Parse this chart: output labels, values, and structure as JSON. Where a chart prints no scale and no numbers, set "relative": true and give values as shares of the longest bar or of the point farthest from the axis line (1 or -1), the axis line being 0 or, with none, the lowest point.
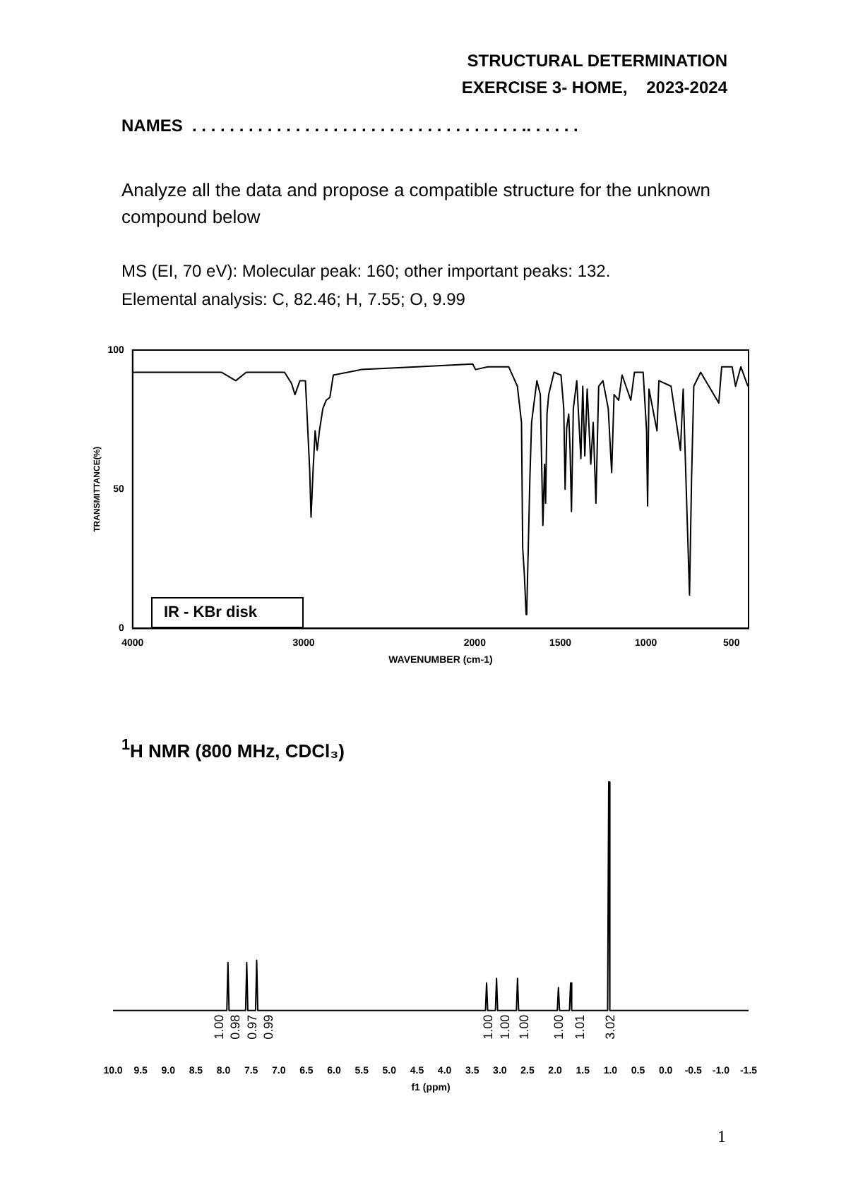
{
  "chart_data": [
    {
      "type": "line",
      "title": "STRUCTURAL DETERMINATION",
      "subtitle": "EXERCISE 3- HOME,    2023-2024",
      "annotations": [
        "NAMES  . . . . . . . . . . . . . . . . . . . . . . . . . . . . . . . . . . . .. . . . . .",
        "Analyze all the data and propose a compatible structure for the unknown compound below",
        "MS (EI, 70 eV): Molecular peak: 160; other important peaks: 132.",
        "Elemental analysis: C, 82.46; H, 7.55; O, 9.99",
        "IR  -  KBr disk"
      ],
      "xlabel": "WAVENUMBER (cm-1)",
      "ylabel": "TRANSMITTANCE(%)",
      "x": [
        4000,
        3479,
        3397,
        3336,
        3112,
        3071,
        3051,
        3022,
        2990,
        2982,
        2965,
        2957,
        2945,
        2933,
        2921,
        2908,
        2888,
        2868,
        2847,
        2827,
        2664,
        2338,
        2012,
        1996,
        1924,
        1802,
        1751,
        1727,
        1720,
        1710,
        1700,
        1696,
        1687,
        1678,
        1668,
        1658,
        1637,
        1617,
        1602,
        1592,
        1586,
        1578,
        1568,
        1537,
        1496,
        1480,
        1472,
        1463,
        1451,
        1443,
        1435,
        1424,
        1404,
        1380,
        1369,
        1357,
        1343,
        1322,
        1308,
        1292,
        1276,
        1251,
        1220,
        1200,
        1186,
        1159,
        1139,
        1088,
        1067,
        1016,
        996,
        990,
        982,
        935,
        924,
        853,
        798,
        782,
        745,
        733,
        720,
        680,
        574,
        557,
        496,
        476,
        445,
        404
      ],
      "series": [
        {
          "color": "#000000",
          "values": [
            92,
            92,
            89,
            92,
            92,
            88,
            84,
            89,
            89,
            79,
            57,
            40,
            57,
            71,
            64,
            71,
            79,
            82,
            83,
            91,
            93,
            94,
            95,
            93,
            94,
            94,
            87,
            74,
            29,
            19,
            5,
            7,
            30,
            54,
            74,
            79,
            89,
            84,
            37,
            59,
            45,
            77,
            84,
            92,
            91,
            79,
            50,
            72,
            77,
            64,
            42,
            79,
            89,
            61,
            87,
            62,
            86,
            59,
            74,
            45,
            87,
            89,
            79,
            56,
            84,
            82,
            91,
            82,
            92,
            92,
            71,
            44,
            86,
            71,
            89,
            87,
            64,
            86,
            12,
            54,
            87,
            92,
            81,
            94,
            94,
            87,
            94,
            87
          ]
        }
      ],
      "xlim": [
        4000,
        400
      ],
      "xticks": [
        4000,
        3000,
        2000,
        1500,
        1000,
        500
      ],
      "ylim": [
        0,
        100
      ],
      "yticks": [
        0,
        50,
        100
      ],
      "marker": "none"
    },
    {
      "type": "line",
      "title": "$^{1}$H NMR (800 MHz, CDCl₃)",
      "xlabel": "f1 (ppm)",
      "relative": true,
      "x": [
        10,
        7.94,
        7.92,
        7.9,
        7.6,
        7.58,
        7.56,
        7.42,
        7.4,
        7.38,
        3.26,
        3.24,
        3.22,
        3.08,
        3.06,
        3.04,
        2.7,
        2.68,
        2.66,
        1.96,
        1.94,
        1.92,
        1.74,
        1.72,
        1.7,
        1.05,
        1.03,
        1.01,
        -1.5
      ],
      "series": [
        {
          "color": "#000000",
          "values": [
            0,
            0,
            0.21,
            0,
            0,
            0.21,
            0,
            0,
            0.22,
            0,
            0,
            0.12,
            0,
            0,
            0.14,
            0,
            0,
            0.14,
            0,
            0,
            0.1,
            0,
            0,
            0.12,
            0,
            0,
            1,
            0,
            0
          ]
        }
      ],
      "xlim": [
        10,
        -1.5
      ],
      "xticks": [
        {
          "value": 10,
          "label": "10.0"
        },
        9.5,
        {
          "value": 9,
          "label": "9.0"
        },
        8.5,
        {
          "value": 8,
          "label": "8.0"
        },
        7.5,
        {
          "value": 7,
          "label": "7.0"
        },
        6.5,
        {
          "value": 6,
          "label": "6.0"
        },
        5.5,
        {
          "value": 5,
          "label": "5.0"
        },
        4.5,
        {
          "value": 4,
          "label": "4.0"
        },
        3.5,
        {
          "value": 3,
          "label": "3.0"
        },
        2.5,
        {
          "value": 2,
          "label": "2.0"
        },
        1.5,
        {
          "value": 1,
          "label": "1.0"
        },
        0.5,
        {
          "value": 0,
          "label": "0.0"
        },
        -0.5,
        {
          "value": -1,
          "label": "-1.0"
        },
        -1.5
      ],
      "marker": "none",
      "annotations": [
        {
          "text": "1.00",
          "x": 8.15,
          "y": 0
        },
        {
          "text": "0.98",
          "x": 7.85,
          "y": 0
        },
        {
          "text": "0.97",
          "x": 7.54,
          "y": 0
        },
        {
          "text": "0.99",
          "x": 7.25,
          "y": 0
        },
        {
          "text": "1.00",
          "x": 3.28,
          "y": 0
        },
        {
          "text": "1.00",
          "x": 2.97,
          "y": 0
        },
        {
          "text": "1.00",
          "x": 2.63,
          "y": 0
        },
        {
          "text": "1.00",
          "x": 2.0,
          "y": 0
        },
        {
          "text": "1.01",
          "x": 1.62,
          "y": 0
        },
        {
          "text": "3.02",
          "x": 1.07,
          "y": 0
        },
        "1"
      ]
    }
  ]
}
